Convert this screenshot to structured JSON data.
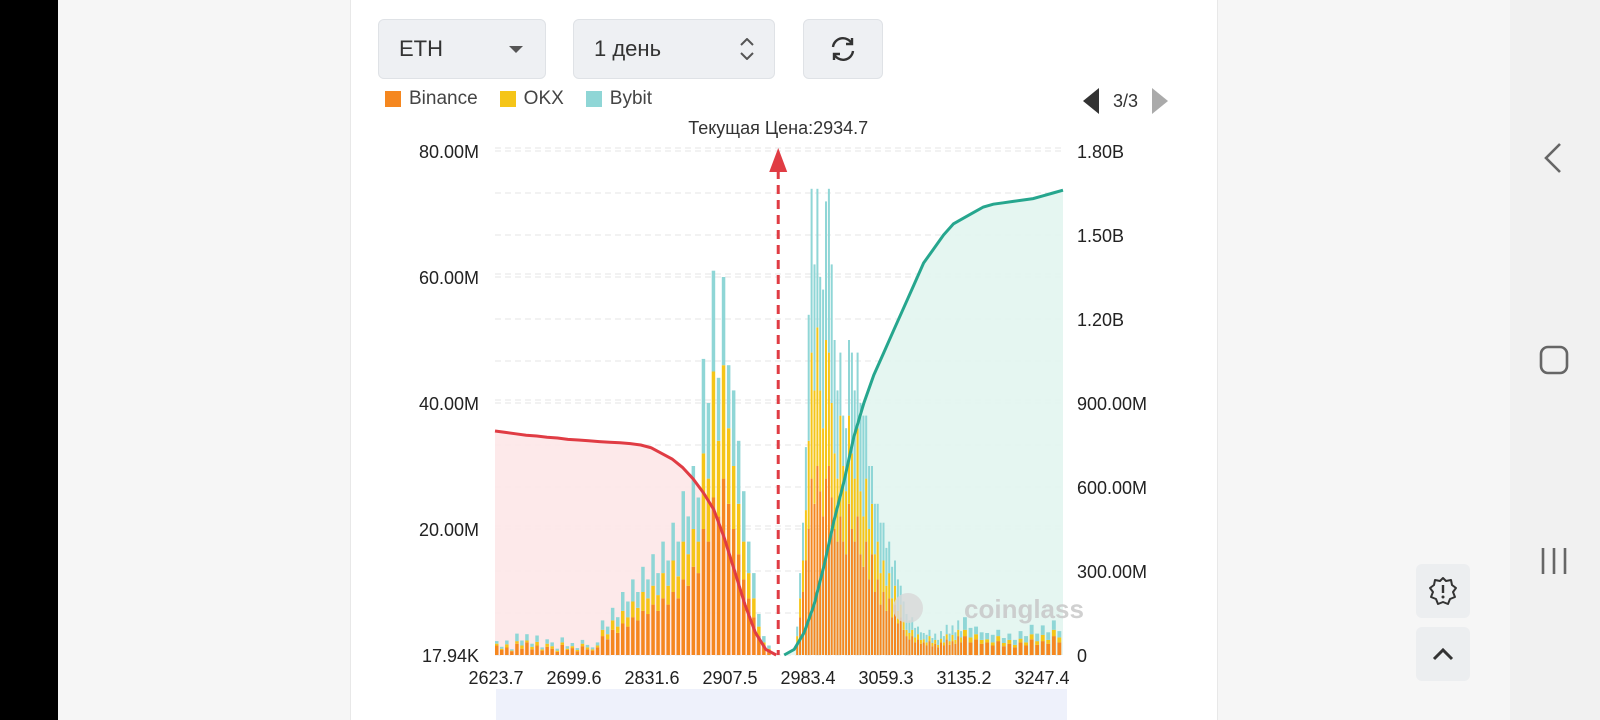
{
  "controls": {
    "coin_value": "ETH",
    "period_value": "1 день"
  },
  "pager": {
    "label": "3/3"
  },
  "icons": {
    "refresh": "refresh-icon",
    "feedback": "alert-gear-icon",
    "scroll_top": "chevron-up-icon",
    "nav_back": "back-icon",
    "nav_home": "home-icon",
    "nav_recents": "recents-icon"
  },
  "colors": {
    "binance": "#f5871f",
    "okx": "#f5c518",
    "bybit": "#8fd6d6",
    "short_line": "#e03c44",
    "long_line": "#26a68e"
  },
  "chart_data": {
    "type": "bar",
    "title": "Текущая Цена:2934.7",
    "current_price": 2934.7,
    "legend": [
      "Binance",
      "OKX",
      "Bybit"
    ],
    "x_ticks": [
      "2623.7",
      "2699.6",
      "2831.6",
      "2907.5",
      "2983.4",
      "3059.3",
      "3135.2",
      "3247.4"
    ],
    "y_left_ticks": [
      "17.94K",
      "20.00M",
      "40.00M",
      "60.00M",
      "80.00M"
    ],
    "y_left_range": [
      0,
      80
    ],
    "y_right_ticks": [
      "0",
      "300.00M",
      "600.00M",
      "900.00M",
      "1.20B",
      "1.50B",
      "1.80B"
    ],
    "y_right_range": [
      0,
      1800
    ],
    "bars_left_stack": [
      [
        1.5,
        0.3,
        0.4
      ],
      [
        0.8,
        0.2,
        0.3
      ],
      [
        1.2,
        0.5,
        0.6
      ],
      [
        0.6,
        0.1,
        0.2
      ],
      [
        1.8,
        0.4,
        1.2
      ],
      [
        1.0,
        0.5,
        0.8
      ],
      [
        2.0,
        0.3,
        1.0
      ],
      [
        0.9,
        0.4,
        0.5
      ],
      [
        1.5,
        0.6,
        1.0
      ],
      [
        0.7,
        0.2,
        0.3
      ],
      [
        1.3,
        0.5,
        0.7
      ],
      [
        1.0,
        0.4,
        0.6
      ],
      [
        0.5,
        0.2,
        0.3
      ],
      [
        1.6,
        0.4,
        0.8
      ],
      [
        0.8,
        0.2,
        0.4
      ],
      [
        1.1,
        0.3,
        0.5
      ],
      [
        0.6,
        0.2,
        0.3
      ],
      [
        1.4,
        0.4,
        0.6
      ],
      [
        0.9,
        0.3,
        0.4
      ],
      [
        0.7,
        0.2,
        0.3
      ],
      [
        1.2,
        0.3,
        0.5
      ],
      [
        3.0,
        1.0,
        1.5
      ],
      [
        2.5,
        0.8,
        1.2
      ],
      [
        4.0,
        1.5,
        2.0
      ],
      [
        3.5,
        1.0,
        1.5
      ],
      [
        5.0,
        2.0,
        3.0
      ],
      [
        4.5,
        1.5,
        2.5
      ],
      [
        6.0,
        2.5,
        3.5
      ],
      [
        5.5,
        2.0,
        2.5
      ],
      [
        7.0,
        3.0,
        4.0
      ],
      [
        6.5,
        2.5,
        3.0
      ],
      [
        8.0,
        3.0,
        5.0
      ],
      [
        7.0,
        2.5,
        3.5
      ],
      [
        9.0,
        4.0,
        5.0
      ],
      [
        8.0,
        3.0,
        4.0
      ],
      [
        10.0,
        5.0,
        6.0
      ],
      [
        9.0,
        3.5,
        5.5
      ],
      [
        12.0,
        6.0,
        8.0
      ],
      [
        11.0,
        5.0,
        6.0
      ],
      [
        14.0,
        6.0,
        10.0
      ],
      [
        13.0,
        5.0,
        7.0
      ],
      [
        20.0,
        12.0,
        15.0
      ],
      [
        18.0,
        10.0,
        12.0
      ],
      [
        25.0,
        20.0,
        16.0
      ],
      [
        22.0,
        12.0,
        10.0
      ],
      [
        28.0,
        18.0,
        14.0
      ],
      [
        24.0,
        12.0,
        10.0
      ],
      [
        20.0,
        10.0,
        12.0
      ],
      [
        16.0,
        8.0,
        10.0
      ],
      [
        12.0,
        6.0,
        8.0
      ],
      [
        9.0,
        4.0,
        5.0
      ],
      [
        6.0,
        3.0,
        4.0
      ],
      [
        3.0,
        1.5,
        2.0
      ],
      [
        1.5,
        0.5,
        1.0
      ],
      [
        0.8,
        0.2,
        0.5
      ]
    ],
    "bars_right_stack": [
      [
        2.0,
        1.0,
        1.5
      ],
      [
        6.0,
        3.0,
        4.0
      ],
      [
        10.0,
        5.0,
        6.0
      ],
      [
        15.0,
        8.0,
        10.0
      ],
      [
        20.0,
        14.0,
        20.0
      ],
      [
        28.0,
        20.0,
        26.0
      ],
      [
        24.0,
        18.0,
        20.0
      ],
      [
        30.0,
        22.0,
        22.0
      ],
      [
        26.0,
        16.0,
        18.0
      ],
      [
        22.0,
        14.0,
        22.0
      ],
      [
        28.0,
        22.0,
        22.0
      ],
      [
        30.0,
        18.0,
        26.0
      ],
      [
        25.0,
        15.0,
        22.0
      ],
      [
        20.0,
        12.0,
        18.0
      ],
      [
        18.0,
        10.0,
        14.0
      ],
      [
        22.0,
        16.0,
        10.0
      ],
      [
        18.0,
        12.0,
        8.0
      ],
      [
        16.0,
        10.0,
        10.0
      ],
      [
        24.0,
        14.0,
        12.0
      ],
      [
        20.0,
        12.0,
        16.0
      ],
      [
        18.0,
        10.0,
        14.0
      ],
      [
        22.0,
        14.0,
        12.0
      ],
      [
        16.0,
        10.0,
        14.0
      ],
      [
        14.0,
        8.0,
        16.0
      ],
      [
        18.0,
        10.0,
        10.0
      ],
      [
        12.0,
        8.0,
        10.0
      ],
      [
        16.0,
        8.0,
        6.0
      ],
      [
        10.0,
        6.0,
        8.0
      ],
      [
        12.0,
        6.0,
        6.0
      ],
      [
        8.0,
        5.0,
        8.0
      ],
      [
        10.0,
        5.0,
        6.0
      ],
      [
        7.0,
        4.0,
        6.0
      ],
      [
        9.0,
        4.0,
        5.0
      ],
      [
        6.0,
        3.0,
        5.0
      ],
      [
        8.0,
        3.0,
        4.0
      ],
      [
        5.0,
        2.0,
        5.0
      ],
      [
        6.0,
        2.0,
        3.0
      ],
      [
        4.0,
        1.5,
        3.0
      ],
      [
        3.0,
        1.0,
        2.5
      ],
      [
        2.5,
        1.0,
        2.0
      ],
      [
        3.0,
        1.0,
        2.0
      ],
      [
        2.0,
        0.8,
        1.5
      ],
      [
        2.5,
        0.8,
        1.2
      ],
      [
        1.8,
        0.6,
        1.2
      ],
      [
        2.0,
        0.5,
        1.0
      ],
      [
        1.5,
        0.5,
        1.2
      ],
      [
        2.2,
        0.8,
        1.0
      ],
      [
        1.4,
        0.5,
        0.8
      ],
      [
        1.8,
        0.6,
        1.0
      ],
      [
        1.2,
        0.4,
        0.8
      ],
      [
        2.0,
        0.6,
        1.2
      ],
      [
        1.5,
        0.5,
        1.0
      ],
      [
        2.5,
        0.8,
        1.5
      ],
      [
        1.6,
        0.6,
        1.2
      ],
      [
        2.2,
        1.0,
        1.5
      ],
      [
        1.8,
        0.6,
        1.2
      ],
      [
        3.0,
        1.0,
        1.5
      ],
      [
        2.0,
        0.8,
        1.0
      ]
    ],
    "short_cumulative_series": [
      800,
      795,
      790,
      785,
      782,
      778,
      775,
      770,
      768,
      765,
      762,
      760,
      758,
      755,
      750,
      740,
      720,
      700,
      670,
      630,
      580,
      520,
      420,
      300,
      180,
      80,
      20,
      0
    ],
    "long_cumulative_series": [
      0,
      20,
      80,
      180,
      320,
      480,
      620,
      780,
      900,
      1000,
      1080,
      1160,
      1240,
      1320,
      1400,
      1450,
      1500,
      1540,
      1560,
      1580,
      1600,
      1610,
      1615,
      1620,
      1625,
      1630,
      1640,
      1650,
      1660
    ],
    "watermark": "coinglass"
  }
}
